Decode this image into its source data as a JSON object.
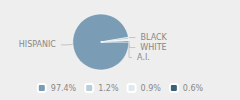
{
  "chart_data": {
    "type": "pie",
    "categories": [
      "HISPANIC",
      "BLACK",
      "WHITE",
      "A.I."
    ],
    "values": [
      97.4,
      1.2,
      0.9,
      0.6
    ],
    "value_labels": [
      "97.4%",
      "1.2%",
      "0.9%",
      "0.6%"
    ],
    "colors": [
      "#7a9db5",
      "#b8cdd8",
      "#dde9ef",
      "#3a6278"
    ],
    "legend": "bottom"
  }
}
